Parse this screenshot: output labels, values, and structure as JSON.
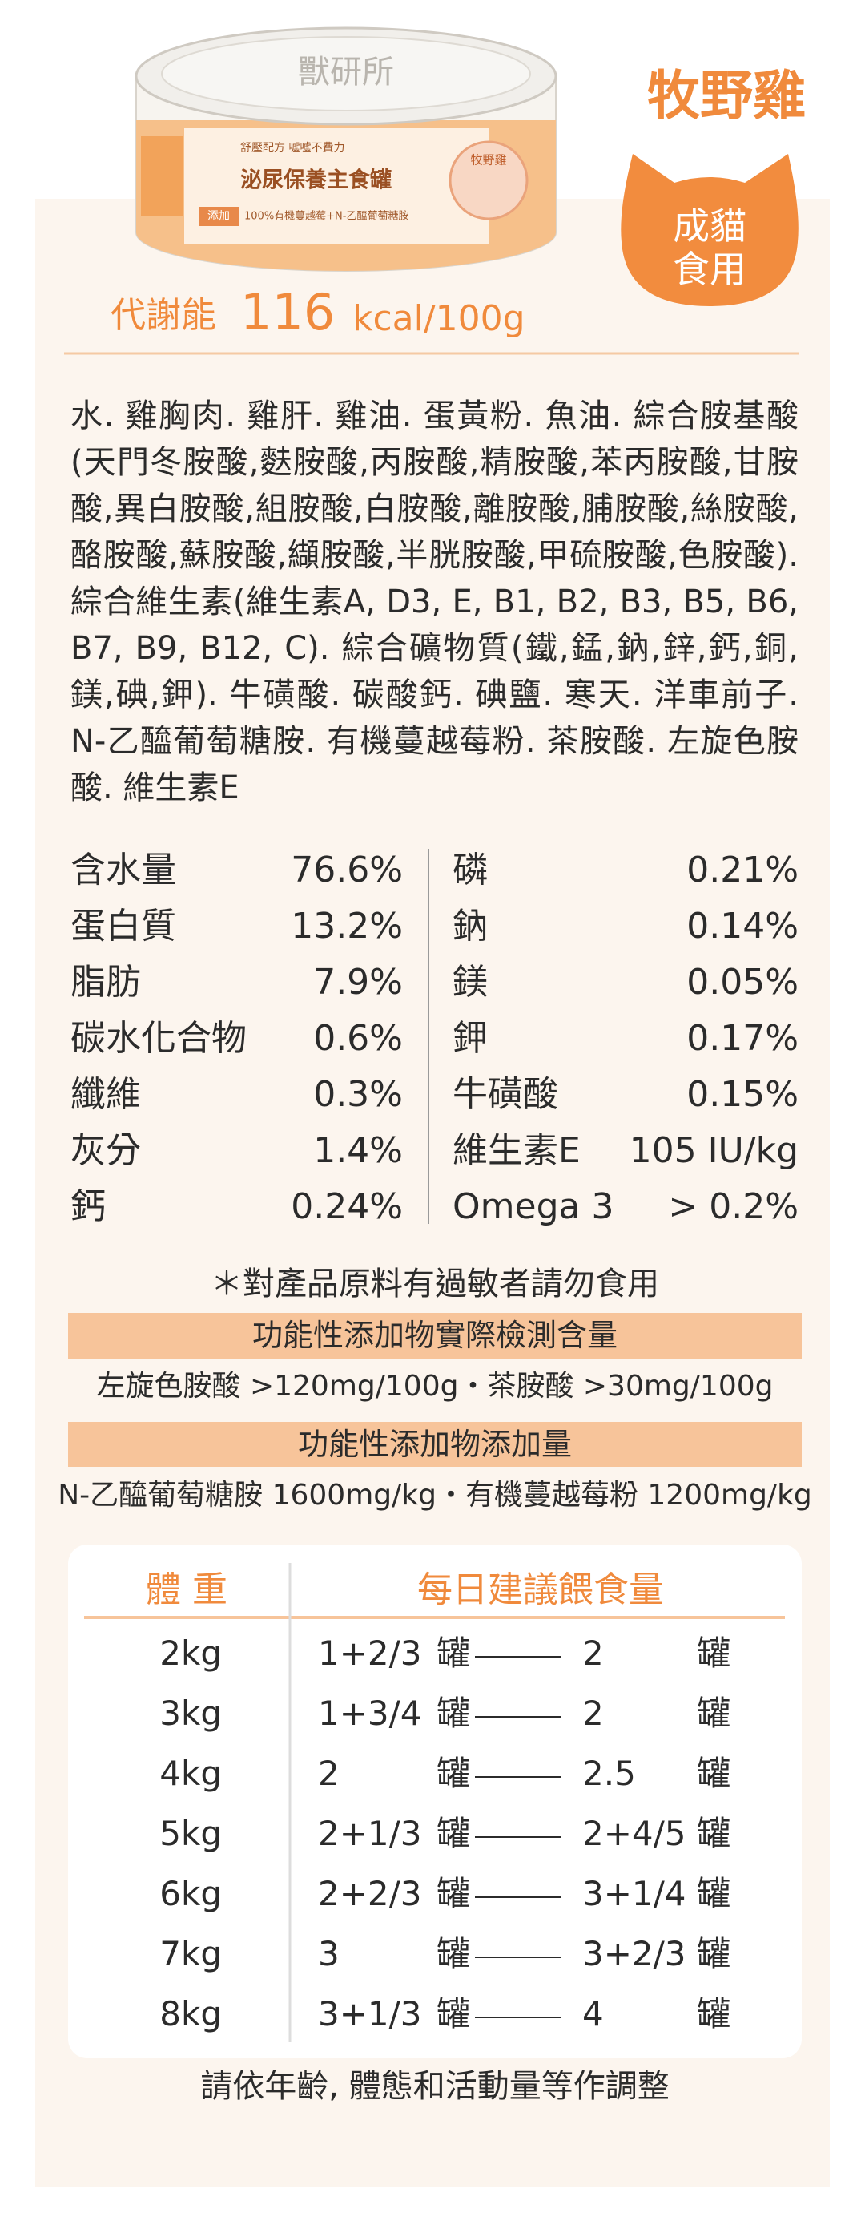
{
  "can": {
    "lid": "獸研所",
    "tagline": "舒壓配方 噓噓不費力",
    "product": "泌尿保養主食罐",
    "add_tag": "添加",
    "add_text": "100%有機蔓越莓+N-乙醯葡萄糖胺",
    "sticker": "牧野雞"
  },
  "header": {
    "title": "牧野雞",
    "badge": [
      "成貓",
      "食用"
    ],
    "energy_label": "代謝能",
    "energy_value": "116",
    "energy_unit": "kcal/100g"
  },
  "ingredients": "水. 雞胸肉. 雞肝. 雞油. 蛋黃粉. 魚油. 綜合胺基酸(天門冬胺酸,麩胺酸,丙胺酸,精胺酸,苯丙胺酸,甘胺酸,異白胺酸,組胺酸,白胺酸,離胺酸,脯胺酸,絲胺酸,酪胺酸,蘇胺酸,纈胺酸,半胱胺酸,甲硫胺酸,色胺酸). 綜合維生素(維生素A, D3, E, B1, B2, B3, B5, B6, B7, B9, B12, C). 綜合礦物質(鐵,錳,鈉,鋅,鈣,銅,鎂,碘,鉀). 牛磺酸. 碳酸鈣. 碘鹽. 寒天. 洋車前子. N-乙醯葡萄糖胺. 有機蔓越莓粉. 茶胺酸. 左旋色胺酸. 維生素E",
  "nutrition": {
    "left": [
      [
        "含水量",
        "76.6%"
      ],
      [
        "蛋白質",
        "13.2%"
      ],
      [
        "脂肪",
        "7.9%"
      ],
      [
        "碳水化合物",
        "0.6%"
      ],
      [
        "纖維",
        "0.3%"
      ],
      [
        "灰分",
        "1.4%"
      ],
      [
        "鈣",
        "0.24%"
      ]
    ],
    "right": [
      [
        "磷",
        "0.21%"
      ],
      [
        "鈉",
        "0.14%"
      ],
      [
        "鎂",
        "0.05%"
      ],
      [
        "鉀",
        "0.17%"
      ],
      [
        "牛磺酸",
        "0.15%"
      ],
      [
        "維生素E",
        "105 IU/kg"
      ],
      [
        "Omega 3",
        "> 0.2%"
      ]
    ]
  },
  "allergy_note": "＊對產品原料有過敏者請勿食用",
  "additives": [
    {
      "heading": "功能性添加物實際檢測含量",
      "text": "左旋色胺酸 >120mg/100g・茶胺酸 >30mg/100g"
    },
    {
      "heading": "功能性添加物添加量",
      "text": "N-乙醯葡萄糖胺 1600mg/kg・有機蔓越莓粉 1200mg/kg"
    }
  ],
  "feeding": {
    "headers": [
      "體 重",
      "每日建議餵食量"
    ],
    "unit": "罐",
    "rows": [
      [
        "2kg",
        "1+2/3",
        "2"
      ],
      [
        "3kg",
        "1+3/4",
        "2"
      ],
      [
        "4kg",
        "2",
        "2.5"
      ],
      [
        "5kg",
        "2+1/3",
        "2+4/5"
      ],
      [
        "6kg",
        "2+2/3",
        "3+1/4"
      ],
      [
        "7kg",
        "3",
        "3+2/3"
      ],
      [
        "8kg",
        "3+1/3",
        "4"
      ]
    ]
  },
  "footer": "請依年齡, 體態和活動量等作調整"
}
